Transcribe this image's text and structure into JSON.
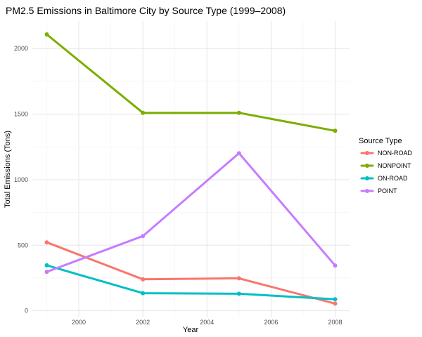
{
  "chart_data": {
    "type": "line",
    "title": "PM2.5 Emissions in Baltimore City by Source Type (1999–2008)",
    "xlabel": "Year",
    "ylabel": "Total Emissions (Tons)",
    "x": [
      1999,
      2002,
      2005,
      2008
    ],
    "x_ticks": [
      2000,
      2002,
      2004,
      2006,
      2008
    ],
    "y_ticks": [
      0,
      500,
      1000,
      1500,
      2000
    ],
    "xlim": [
      1998.55,
      2008.45
    ],
    "ylim": [
      -50,
      2210
    ],
    "grid": true,
    "legend_title": "Source Type",
    "legend_position": "right",
    "series": [
      {
        "name": "NON-ROAD",
        "color": "#F8766D",
        "values": [
          522,
          240,
          248,
          55
        ]
      },
      {
        "name": "NONPOINT",
        "color": "#7CAE00",
        "values": [
          2108,
          1510,
          1510,
          1373
        ]
      },
      {
        "name": "ON-ROAD",
        "color": "#00BFC4",
        "values": [
          347,
          134,
          130,
          88
        ]
      },
      {
        "name": "POINT",
        "color": "#C77CFF",
        "values": [
          297,
          570,
          1202,
          345
        ]
      }
    ]
  }
}
